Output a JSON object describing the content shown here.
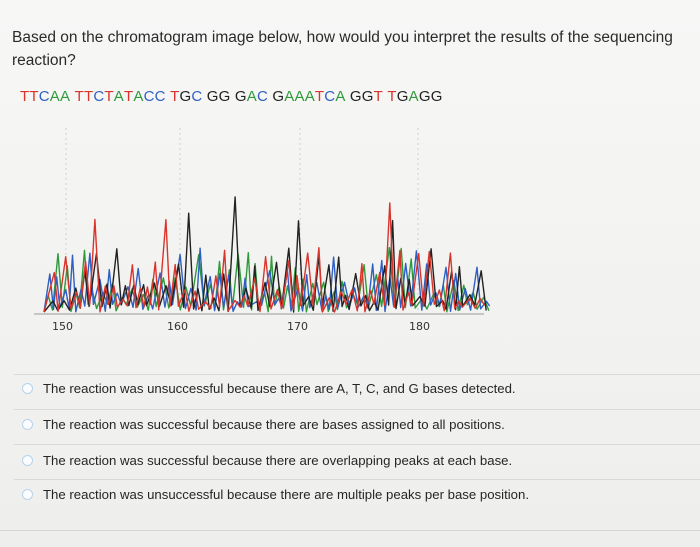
{
  "question": {
    "text": "Based on the chromatogram image below, how would you interpret the results of the sequencing reaction?"
  },
  "chromatogram": {
    "sequence": [
      {
        "base": "T",
        "color": "#d9342b"
      },
      {
        "base": "T",
        "color": "#d9342b"
      },
      {
        "base": "C",
        "color": "#2f5fc4"
      },
      {
        "base": "A",
        "color": "#2e9a3a"
      },
      {
        "base": "A",
        "color": "#2e9a3a"
      },
      {
        "base": " ",
        "color": "#222"
      },
      {
        "base": "T",
        "color": "#d9342b"
      },
      {
        "base": "T",
        "color": "#d9342b"
      },
      {
        "base": "C",
        "color": "#2f5fc4"
      },
      {
        "base": "T",
        "color": "#d9342b"
      },
      {
        "base": "A",
        "color": "#2e9a3a"
      },
      {
        "base": "T",
        "color": "#d9342b"
      },
      {
        "base": "A",
        "color": "#2e9a3a"
      },
      {
        "base": "C",
        "color": "#2f5fc4"
      },
      {
        "base": "C",
        "color": "#2f5fc4"
      },
      {
        "base": " ",
        "color": "#222"
      },
      {
        "base": "T",
        "color": "#d9342b"
      },
      {
        "base": "G",
        "color": "#222"
      },
      {
        "base": "C",
        "color": "#2f5fc4"
      },
      {
        "base": " ",
        "color": "#222"
      },
      {
        "base": "G",
        "color": "#222"
      },
      {
        "base": "G",
        "color": "#222"
      },
      {
        "base": " ",
        "color": "#222"
      },
      {
        "base": "G",
        "color": "#222"
      },
      {
        "base": "A",
        "color": "#2e9a3a"
      },
      {
        "base": "C",
        "color": "#2f5fc4"
      },
      {
        "base": " ",
        "color": "#222"
      },
      {
        "base": "G",
        "color": "#222"
      },
      {
        "base": "A",
        "color": "#2e9a3a"
      },
      {
        "base": "A",
        "color": "#2e9a3a"
      },
      {
        "base": "A",
        "color": "#2e9a3a"
      },
      {
        "base": "T",
        "color": "#d9342b"
      },
      {
        "base": "C",
        "color": "#2f5fc4"
      },
      {
        "base": "A",
        "color": "#2e9a3a"
      },
      {
        "base": " ",
        "color": "#222"
      },
      {
        "base": "G",
        "color": "#222"
      },
      {
        "base": "G",
        "color": "#222"
      },
      {
        "base": "T",
        "color": "#d9342b"
      },
      {
        "base": " ",
        "color": "#222"
      },
      {
        "base": "T",
        "color": "#d9342b"
      },
      {
        "base": "G",
        "color": "#222"
      },
      {
        "base": "A",
        "color": "#2e9a3a"
      },
      {
        "base": "G",
        "color": "#222"
      },
      {
        "base": "G",
        "color": "#222"
      }
    ],
    "axis_ticks": [
      "150",
      "160",
      "170",
      "180"
    ],
    "trace_colors": {
      "A": "#2e9a3a",
      "C": "#2f5fc4",
      "G": "#222222",
      "T": "#d9342b"
    }
  },
  "options": [
    {
      "label": "The reaction was unsuccessful because there are A, T, C, and G bases detected."
    },
    {
      "label": "The reaction was successful because there are bases assigned to all positions."
    },
    {
      "label": "The reaction was successful because there are overlapping peaks at each base."
    },
    {
      "label": "The reaction was unsuccessful because there are multiple peaks per base position."
    }
  ]
}
